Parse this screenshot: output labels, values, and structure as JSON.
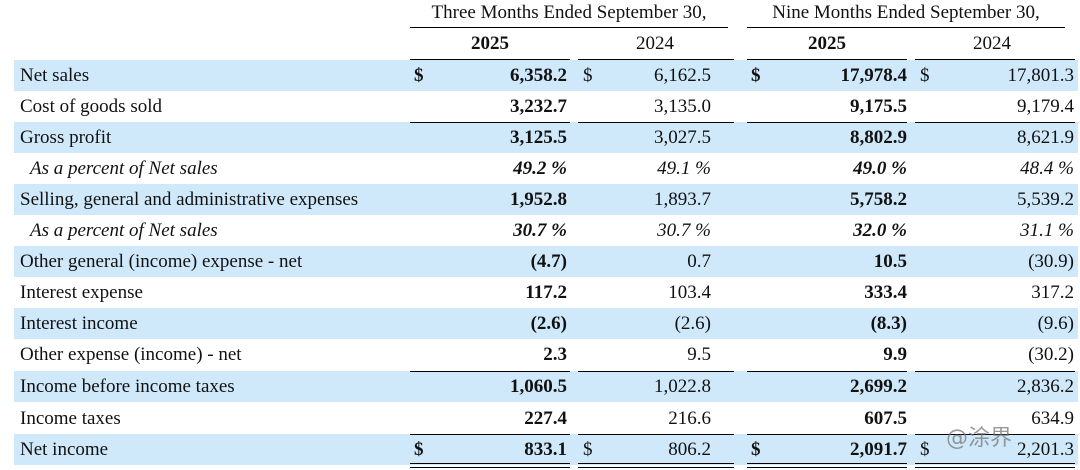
{
  "header": {
    "period_three": "Three Months Ended September 30,",
    "period_nine": "Nine Months Ended September 30,",
    "years": [
      "2025",
      "2024",
      "2025",
      "2024"
    ]
  },
  "currency_symbol": "$",
  "rows": [
    {
      "label": "Net sales",
      "values": [
        "6,358.2",
        "6,162.5",
        "17,978.4",
        "17,801.3"
      ],
      "dollar": true,
      "shaded": true
    },
    {
      "label": "Cost of goods sold",
      "values": [
        "3,232.7",
        "3,135.0",
        "9,175.5",
        "9,179.4"
      ],
      "shaded": false
    },
    {
      "label": "Gross profit",
      "values": [
        "3,125.5",
        "3,027.5",
        "8,802.9",
        "8,621.9"
      ],
      "shaded": true
    },
    {
      "label": "As a percent of Net sales",
      "values": [
        "49.2 %",
        "49.1 %",
        "49.0 %",
        "48.4 %"
      ],
      "italic": true,
      "shaded": false
    },
    {
      "label": "Selling, general and administrative expenses",
      "values": [
        "1,952.8",
        "1,893.7",
        "5,758.2",
        "5,539.2"
      ],
      "shaded": true
    },
    {
      "label": "As a percent of Net sales",
      "values": [
        "30.7 %",
        "30.7 %",
        "32.0 %",
        "31.1 %"
      ],
      "italic": true,
      "shaded": false
    },
    {
      "label": "Other general (income) expense - net",
      "values": [
        "(4.7)",
        "0.7",
        "10.5",
        "(30.9)"
      ],
      "shaded": true
    },
    {
      "label": "Interest expense",
      "values": [
        "117.2",
        "103.4",
        "333.4",
        "317.2"
      ],
      "shaded": false
    },
    {
      "label": "Interest income",
      "values": [
        "(2.6)",
        "(2.6)",
        "(8.3)",
        "(9.6)"
      ],
      "shaded": true
    },
    {
      "label": "Other expense (income) - net",
      "values": [
        "2.3",
        "9.5",
        "9.9",
        "(30.2)"
      ],
      "shaded": false
    },
    {
      "label": "Income before income taxes",
      "values": [
        "1,060.5",
        "1,022.8",
        "2,699.2",
        "2,836.2"
      ],
      "shaded": true
    },
    {
      "label": "Income taxes",
      "values": [
        "227.4",
        "216.6",
        "607.5",
        "634.9"
      ],
      "shaded": false
    },
    {
      "label": "Net income",
      "values": [
        "833.1",
        "806.2",
        "2,091.7",
        "2,201.3"
      ],
      "dollar": true,
      "shaded": true
    }
  ],
  "watermark": "@涂界"
}
